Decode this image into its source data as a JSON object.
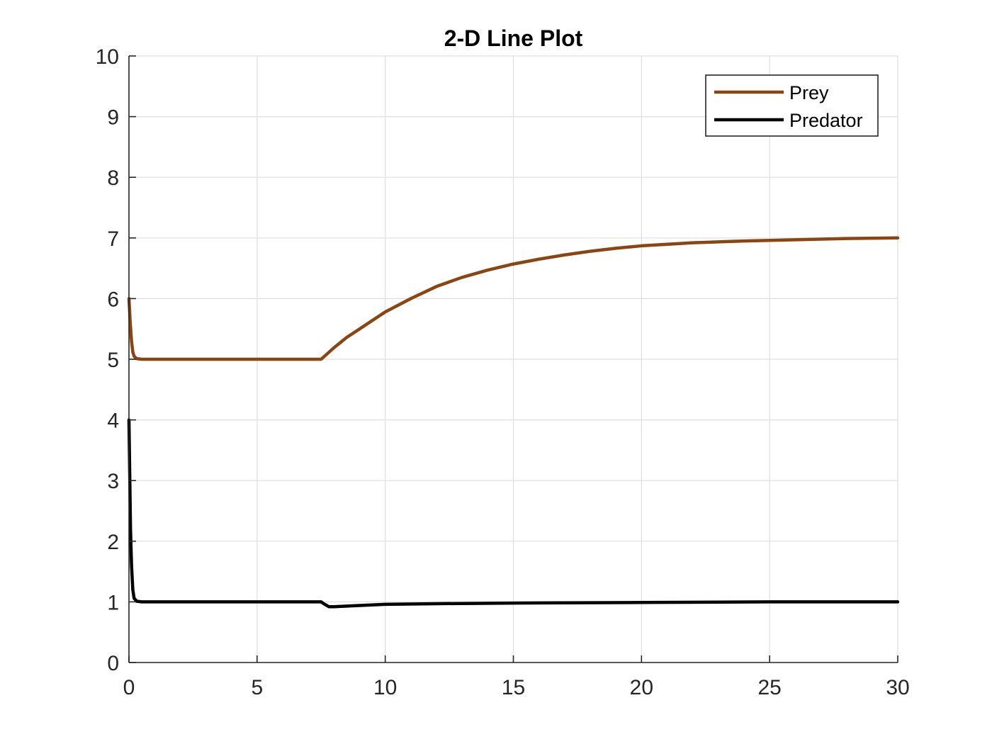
{
  "chart_data": {
    "type": "line",
    "title": "2-D Line Plot",
    "xlabel": "",
    "ylabel": "",
    "xlim": [
      0,
      30
    ],
    "ylim": [
      0,
      10
    ],
    "xticks": [
      0,
      5,
      10,
      15,
      20,
      25,
      30
    ],
    "yticks": [
      0,
      1,
      2,
      3,
      4,
      5,
      6,
      7,
      8,
      9,
      10
    ],
    "grid": true,
    "legend_position": "top-right",
    "series": [
      {
        "name": "Prey",
        "color": "#8B4513",
        "x": [
          0,
          0.05,
          0.1,
          0.15,
          0.2,
          0.3,
          0.5,
          1,
          2,
          4,
          6,
          7.5,
          8,
          8.5,
          9,
          10,
          11,
          12,
          13,
          14,
          15,
          16,
          17,
          18,
          19,
          20,
          22,
          24,
          26,
          28,
          30
        ],
        "y": [
          6.0,
          5.6,
          5.3,
          5.12,
          5.05,
          5.01,
          5.0,
          5.0,
          5.0,
          5.0,
          5.0,
          5.0,
          5.19,
          5.36,
          5.5,
          5.78,
          6.0,
          6.2,
          6.35,
          6.47,
          6.57,
          6.65,
          6.72,
          6.78,
          6.83,
          6.87,
          6.92,
          6.95,
          6.97,
          6.99,
          7.0
        ]
      },
      {
        "name": "Predator",
        "color": "#000000",
        "x": [
          0,
          0.03,
          0.06,
          0.1,
          0.15,
          0.2,
          0.3,
          0.5,
          1,
          3,
          5,
          7,
          7.5,
          7.6,
          7.8,
          8,
          9,
          10,
          12,
          15,
          20,
          25,
          30
        ],
        "y": [
          4.0,
          3.1,
          2.2,
          1.6,
          1.2,
          1.06,
          1.01,
          1.0,
          1.0,
          1.0,
          1.0,
          1.0,
          1.0,
          0.97,
          0.92,
          0.92,
          0.94,
          0.96,
          0.97,
          0.98,
          0.99,
          1.0,
          1.0
        ]
      }
    ]
  }
}
